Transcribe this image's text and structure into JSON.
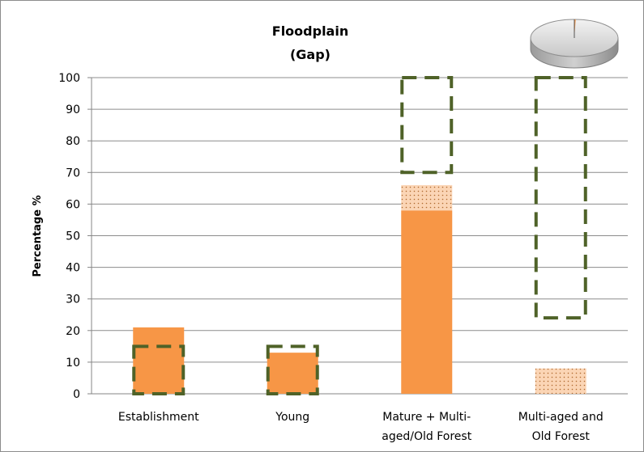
{
  "chart_data": {
    "type": "bar",
    "title_lines": [
      "Floodplain",
      "(Gap)"
    ],
    "ylabel": "Percentage %",
    "xlabel": "",
    "ylim": [
      0,
      100
    ],
    "yticks": [
      0,
      10,
      20,
      30,
      40,
      50,
      60,
      70,
      80,
      90,
      100
    ],
    "grid": true,
    "categories": [
      [
        "Establishment"
      ],
      [
        "Young"
      ],
      [
        "Mature + Multi-",
        "aged/Old Forest"
      ],
      [
        "Multi-aged and",
        "Old Forest"
      ]
    ],
    "series": [
      {
        "style": "solid",
        "color": "#f79646",
        "values": [
          21,
          13,
          58,
          0
        ]
      },
      {
        "style": "dotted",
        "color": "#fbd5b5",
        "dot_color": "#b06a30",
        "values": [
          0,
          0,
          8,
          8
        ]
      },
      {
        "style": "dashed-range",
        "color": "#4f6228",
        "ranges": [
          [
            0,
            15
          ],
          [
            0,
            15
          ],
          [
            70,
            100
          ],
          [
            24,
            100
          ]
        ]
      }
    ],
    "inset_pie": {
      "slices": [
        99.5,
        0.5
      ],
      "colors": [
        "#d9d9d9",
        "#f79646"
      ]
    }
  }
}
